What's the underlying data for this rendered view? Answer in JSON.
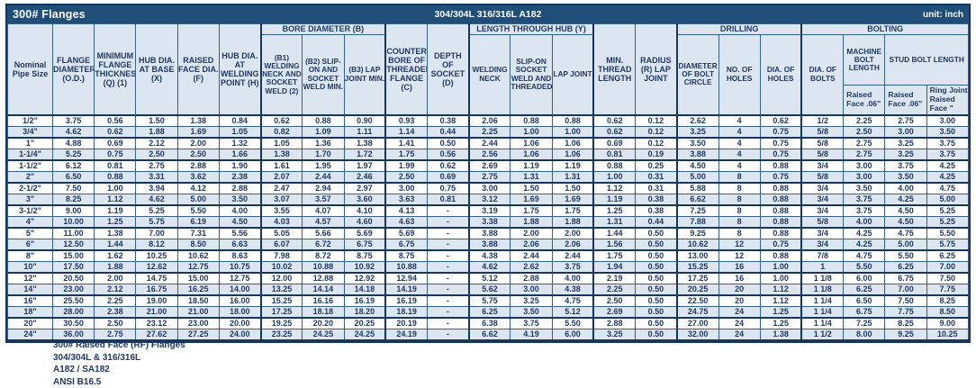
{
  "title_bar": {
    "title": "300# Flanges",
    "material": "304/304L 316/316L A182",
    "unit": "unit: inch"
  },
  "header": {
    "simple": {
      "nominal": "Nominal Pipe Size",
      "od": "FLANGE DIAMETER (O.D.)",
      "thickness": "MINIMUM FLANGE THICKNESS (Q) (1)",
      "hub_base": "HUB DIA. AT BASE (X)",
      "raised_face": "RAISED FACE DIA. (F)",
      "hub_weld": "HUB DIA. AT WELDING POINT (H)",
      "counter_bore": "COUNTER BORE OF THREADED FLANGE (C)",
      "socket_depth": "DEPTH OF SOCKET (D)",
      "min_thread": "MIN. THREAD LENGTH",
      "radius": "RADIUS (R) LAP JOINT"
    },
    "groups": {
      "bore": "BORE DIAMETER (B)",
      "length_hub": "LENGTH THROUGH HUB (Y)",
      "drilling": "DRILLING",
      "bolting": "BOLTING"
    },
    "bore_subs": {
      "b1": "(B1) WELDING NECK AND SOCKET WELD (2)",
      "b2": "(B2) SLIP-ON AND SOCKET WELD MIN.",
      "b3": "(B3) LAP JOINT MIN."
    },
    "length_subs": {
      "wn": "WELDING NECK",
      "so": "SLIP-ON SOCKET WELD AND THREADED",
      "lj": "LAP JOINT"
    },
    "drilling_subs": {
      "bolt_circle": "DIAMETER OF BOLT CIRCLE",
      "no_holes": "NO. OF HOLES",
      "dia_holes": "DIA. OF HOLES"
    },
    "bolting_subs": {
      "dia_bolts": "DIA. OF BOLTS",
      "machine_bolt": "MACHINE BOLT LENGTH",
      "stud_bolt": "STUD BOLT LENGTH"
    },
    "face_subs": {
      "machine_rf": "Raised Face .06\"",
      "stud_rf": "Raised Face .06\"",
      "stud_rj": "Ring Joint Raised Face \""
    }
  },
  "table": {
    "rows": [
      [
        "1/2\"",
        "3.75",
        "0.56",
        "1.50",
        "1.38",
        "0.84",
        "0.62",
        "0.88",
        "0.90",
        "0.93",
        "0.38",
        "2.06",
        "0.88",
        "0.88",
        "0.62",
        "0.12",
        "2.62",
        "4",
        "0.62",
        "1/2",
        "2.25",
        "2.75",
        "3.00"
      ],
      [
        "3/4\"",
        "4.62",
        "0.62",
        "1.88",
        "1.69",
        "1.05",
        "0.82",
        "1.09",
        "1.11",
        "1.14",
        "0.44",
        "2.25",
        "1.00",
        "1.00",
        "0.62",
        "0.12",
        "3.25",
        "4",
        "0.75",
        "5/8",
        "2.50",
        "3.00",
        "3.50"
      ],
      [
        "1\"",
        "4.88",
        "0.69",
        "2.12",
        "2.00",
        "1.32",
        "1.05",
        "1.36",
        "1.38",
        "1.41",
        "0.50",
        "2.44",
        "1.06",
        "1.06",
        "0.69",
        "0.12",
        "3.50",
        "4",
        "0.75",
        "5/8",
        "2.75",
        "3.25",
        "3.75"
      ],
      [
        "1-1/4\"",
        "5.25",
        "0.75",
        "2.50",
        "2.50",
        "1.66",
        "1.38",
        "1.70",
        "1.72",
        "1.75",
        "0.56",
        "2.56",
        "1.06",
        "1.06",
        "0.81",
        "0.19",
        "3.88",
        "4",
        "0.75",
        "5/8",
        "2.75",
        "3.25",
        "3.75"
      ],
      [
        "1-1/2\"",
        "6.12",
        "0.81",
        "2.75",
        "2.88",
        "1.90",
        "1.61",
        "1.95",
        "1.97",
        "1.99",
        "0.62",
        "2.69",
        "1.19",
        "1.19",
        "0.88",
        "0.25",
        "4.50",
        "4",
        "0.88",
        "3/4",
        "3.00",
        "3.75",
        "4.25"
      ],
      [
        "2\"",
        "6.50",
        "0.88",
        "3.31",
        "3.62",
        "2.38",
        "2.07",
        "2.44",
        "2.46",
        "2.50",
        "0.69",
        "2.75",
        "1.31",
        "1.31",
        "1.00",
        "0.31",
        "5.00",
        "8",
        "0.75",
        "5/8",
        "3.00",
        "3.50",
        "4.25"
      ],
      [
        "2-1/2\"",
        "7.50",
        "1.00",
        "3.94",
        "4.12",
        "2.88",
        "2.47",
        "2.94",
        "2.97",
        "3.00",
        "0.75",
        "3.00",
        "1.50",
        "1.50",
        "1.12",
        "0.31",
        "5.88",
        "8",
        "0.88",
        "3/4",
        "3.50",
        "4.00",
        "4.75"
      ],
      [
        "3\"",
        "8.25",
        "1.12",
        "4.62",
        "5.00",
        "3.50",
        "3.07",
        "3.57",
        "3.60",
        "3.63",
        "0.81",
        "3.12",
        "1.69",
        "1.69",
        "1.19",
        "0.38",
        "6.62",
        "8",
        "0.88",
        "3/4",
        "3.75",
        "4.25",
        "5.00"
      ],
      [
        "3-1/2\"",
        "9.00",
        "1.19",
        "5.25",
        "5.50",
        "4.00",
        "3.55",
        "4.07",
        "4.10",
        "4.13",
        "-",
        "3.19",
        "1.75",
        "1.75",
        "1.25",
        "0.38",
        "7.25",
        "8",
        "0.88",
        "3/4",
        "3.75",
        "4.50",
        "5.25"
      ],
      [
        "4\"",
        "10.00",
        "1.25",
        "5.75",
        "6.19",
        "4.50",
        "4.03",
        "4.57",
        "4.60",
        "4.63",
        "-",
        "3.38",
        "1.88",
        "1.88",
        "1.31",
        "0.44",
        "7.88",
        "8",
        "0.88",
        "5/8",
        "4.00",
        "4.50",
        "5.25"
      ],
      [
        "5\"",
        "11.00",
        "1.38",
        "7.00",
        "7.31",
        "5.56",
        "5.05",
        "5.66",
        "5.69",
        "5.69",
        "-",
        "3.88",
        "2.00",
        "2.00",
        "1.44",
        "0.50",
        "9.25",
        "8",
        "0.88",
        "3/4",
        "4.25",
        "4.75",
        "5.50"
      ],
      [
        "6\"",
        "12.50",
        "1.44",
        "8.12",
        "8.50",
        "6.63",
        "6.07",
        "6.72",
        "6.75",
        "6.75",
        "-",
        "3.88",
        "2.06",
        "2.06",
        "1.56",
        "0.50",
        "10.62",
        "12",
        "0.75",
        "3/4",
        "4.25",
        "5.00",
        "5.75"
      ],
      [
        "8\"",
        "15.00",
        "1.62",
        "10.25",
        "10.62",
        "8.63",
        "7.98",
        "8.72",
        "8.75",
        "8.75",
        "-",
        "4.38",
        "2.44",
        "2.44",
        "1.75",
        "0.50",
        "13.00",
        "12",
        "0.88",
        "7/8",
        "4.75",
        "5.50",
        "6.25"
      ],
      [
        "10\"",
        "17.50",
        "1.88",
        "12.62",
        "12.75",
        "10.75",
        "10.02",
        "10.88",
        "10.92",
        "10.88",
        "-",
        "4.62",
        "2.62",
        "3.75",
        "1.94",
        "0.50",
        "15.25",
        "16",
        "1.00",
        "1",
        "5.50",
        "6.25",
        "7.00"
      ],
      [
        "12\"",
        "20.50",
        "2.00",
        "14.75",
        "15.00",
        "12.75",
        "12.00",
        "12.88",
        "12.92",
        "12.94",
        "-",
        "5.12",
        "2.88",
        "4.00",
        "2.19",
        "0.50",
        "17.25",
        "16",
        "1.00",
        "1 1/8",
        "6.00",
        "6.75",
        "7.50"
      ],
      [
        "14\"",
        "23.00",
        "2.12",
        "16.75",
        "16.25",
        "14.00",
        "13.25",
        "14.14",
        "14.18",
        "14.19",
        "-",
        "5.62",
        "3.00",
        "4.38",
        "2.25",
        "0.50",
        "20.25",
        "20",
        "1.12",
        "1 1/8",
        "6.25",
        "7.00",
        "7.75"
      ],
      [
        "16\"",
        "25.50",
        "2.25",
        "19.00",
        "18.50",
        "16.00",
        "15.25",
        "16.16",
        "16.19",
        "16.19",
        "-",
        "5.75",
        "3.25",
        "4.75",
        "2.50",
        "0.50",
        "22.50",
        "20",
        "1.12",
        "1 1/4",
        "6.50",
        "7.50",
        "8.25"
      ],
      [
        "18\"",
        "28.00",
        "2.38",
        "21.00",
        "21.00",
        "18.00",
        "17.25",
        "18.18",
        "18.20",
        "18.19",
        "-",
        "6.25",
        "3.50",
        "5.12",
        "2.69",
        "0.50",
        "24.75",
        "24",
        "1.25",
        "1 1/4",
        "6.75",
        "7.75",
        "8.50"
      ],
      [
        "20\"",
        "30.50",
        "2.50",
        "23.12",
        "23.00",
        "20.00",
        "19.25",
        "20.20",
        "20.25",
        "20.19",
        "-",
        "6.38",
        "3.75",
        "5.50",
        "2.88",
        "0.50",
        "27.00",
        "24",
        "1.25",
        "1 1/4",
        "7.25",
        "8.25",
        "9.00"
      ],
      [
        "24\"",
        "36.00",
        "2.75",
        "27.62",
        "27.25",
        "24.00",
        "23.25",
        "24.25",
        "24.25",
        "24.19",
        "-",
        "6.62",
        "4.19",
        "6.00",
        "3.25",
        "0.50",
        "32.00",
        "24",
        "1.38",
        "1 1/2",
        "8.00",
        "9.25",
        "10.25"
      ]
    ]
  },
  "footnotes": [
    "300# Raised Face (RF) Flanges",
    "304/304L & 316/316L",
    "A182 / SA182",
    "ANSI B16.5"
  ],
  "colors": {
    "title_bar_bg": "#1F4E79",
    "title_text": "#FFFFFF",
    "header_bg": "#DCE6F1",
    "band_row_bg": "#DCE6F1",
    "text": "#1F3864",
    "border": "#16365C"
  }
}
